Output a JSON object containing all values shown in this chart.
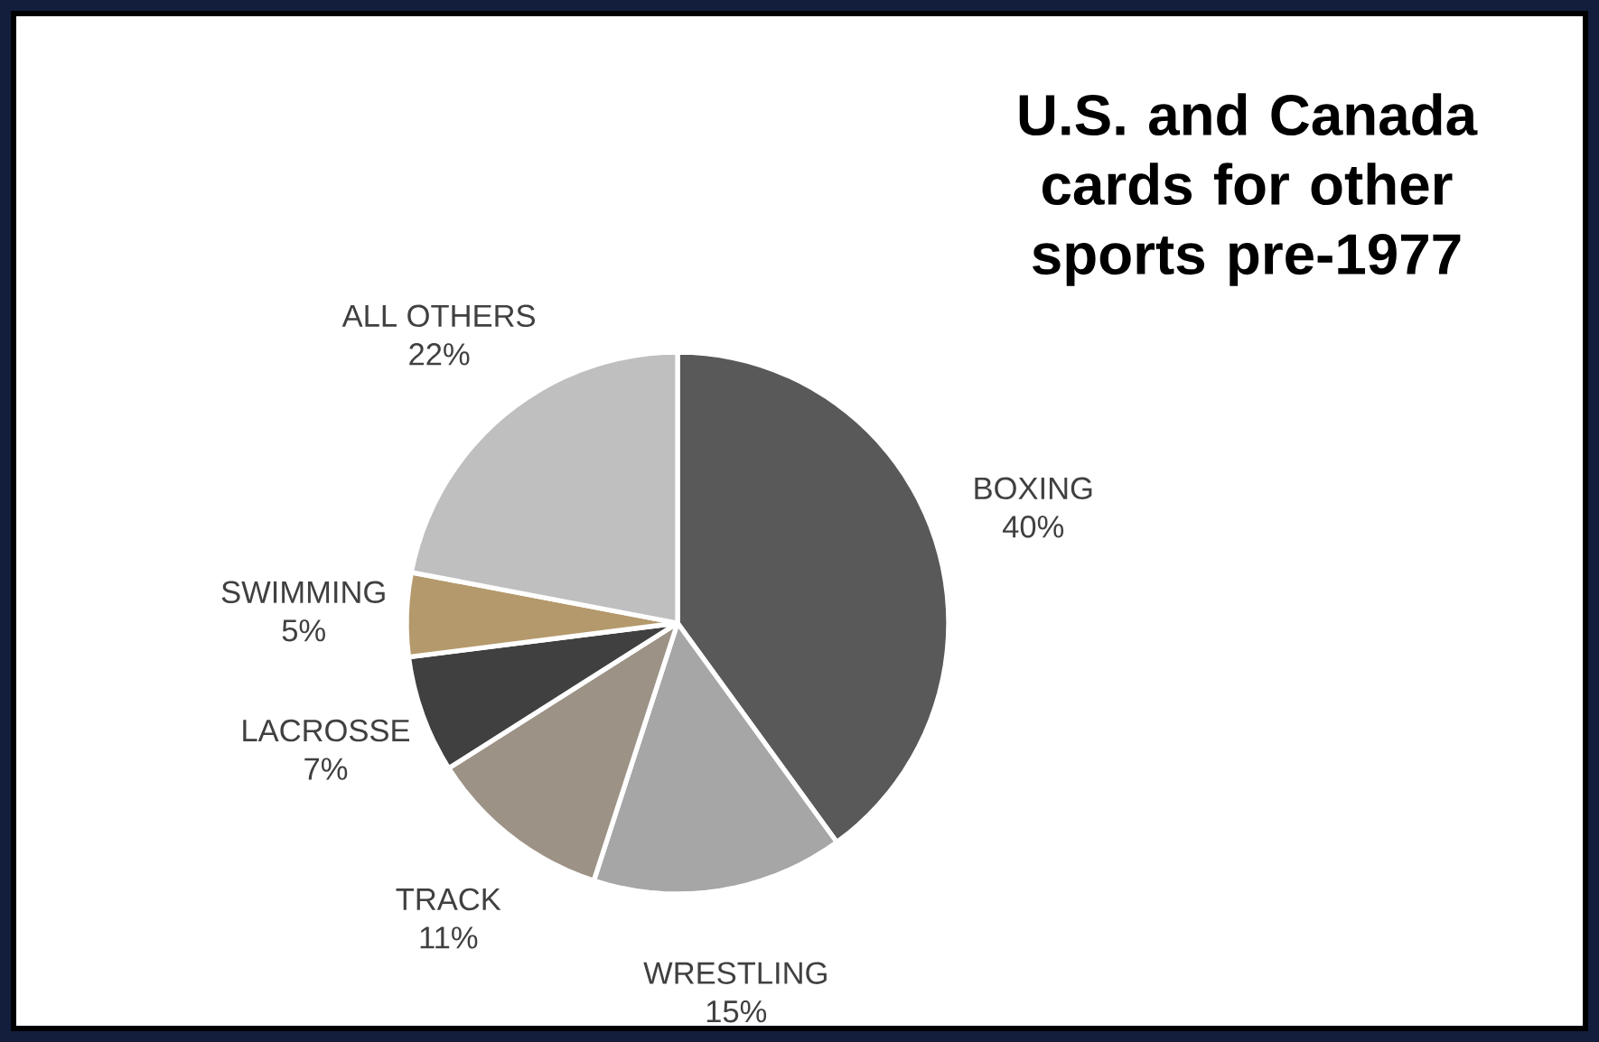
{
  "chart_data": {
    "type": "pie",
    "title": "U.S. and Canada cards for other sports pre-1977",
    "categories": [
      "BOXING",
      "WRESTLING",
      "TRACK",
      "LACROSSE",
      "SWIMMING",
      "ALL OTHERS"
    ],
    "values": [
      40,
      15,
      11,
      7,
      5,
      22
    ],
    "value_labels": [
      "40%",
      "15%",
      "11%",
      "7%",
      "5%",
      "22%"
    ],
    "colors": [
      "#595959",
      "#a6a6a6",
      "#9c9286",
      "#404040",
      "#b4996c",
      "#bfbfbf"
    ]
  }
}
